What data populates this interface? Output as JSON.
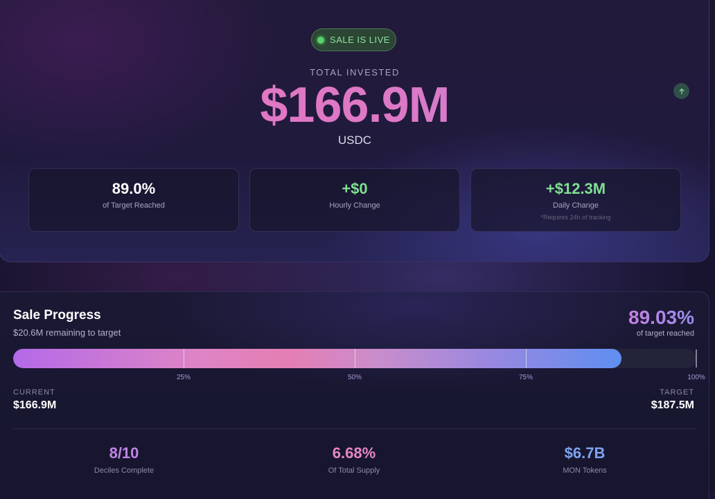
{
  "hero": {
    "status": "SALE IS LIVE",
    "total_label": "TOTAL INVESTED",
    "total_amount": "$166.9M",
    "currency": "USDC",
    "up_icon": "arrow-up-icon"
  },
  "stats": [
    {
      "value": "89.0%",
      "label": "of Target Reached",
      "note": "",
      "color": "#ffffff"
    },
    {
      "value": "+$0",
      "label": "Hourly Change",
      "note": "",
      "color": "#7fe08f"
    },
    {
      "value": "+$12.3M",
      "label": "Daily Change",
      "note": "*Requires 24h of tracking",
      "color": "#7fe08f"
    }
  ],
  "progress": {
    "title": "Sale Progress",
    "remaining": "$20.6M remaining to target",
    "percent": "89.03%",
    "percent_label": "of target reached",
    "fraction": 0.8903,
    "ticks": [
      "25%",
      "50%",
      "75%",
      "100%"
    ],
    "current_label": "CURRENT",
    "current_value": "$166.9M",
    "target_label": "TARGET",
    "target_value": "$187.5M"
  },
  "metrics": [
    {
      "value": "8/10",
      "label": "Deciles Complete",
      "color": "#c184e6"
    },
    {
      "value": "6.68%",
      "label": "Of Total Supply",
      "color": "#e488c4"
    },
    {
      "value": "$6.7B",
      "label": "MON Tokens",
      "color": "#7ea3f0"
    }
  ],
  "colors": {
    "live_green": "#58d36b",
    "accent_pink": "#e874be",
    "accent_blue": "#5f8ef0"
  }
}
